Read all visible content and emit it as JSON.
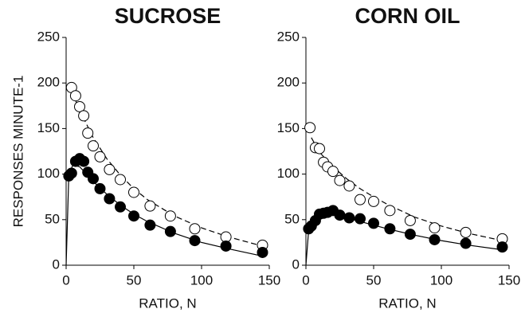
{
  "chart_data": [
    {
      "type": "scatter",
      "title": "SUCROSE",
      "xlabel": "RATIO, N",
      "ylabel": "RESPONSES MINUTE-1",
      "xlim": [
        0,
        150
      ],
      "xticks": [
        0,
        50,
        100,
        150
      ],
      "ylim": [
        0,
        250
      ],
      "yticks": [
        0,
        50,
        100,
        150,
        200,
        250
      ],
      "series": [
        {
          "marker": "open",
          "color": "#000000",
          "x": [
            4,
            7,
            10,
            13,
            16,
            20,
            25,
            32,
            40,
            50,
            62,
            77,
            95,
            118,
            145
          ],
          "values": [
            195,
            186,
            174,
            164,
            145,
            131,
            119,
            105,
            94,
            80,
            65,
            54,
            40,
            31,
            22
          ]
        },
        {
          "marker": "filled",
          "color": "#000000",
          "x": [
            2,
            4,
            7,
            10,
            13,
            16,
            20,
            25,
            32,
            40,
            50,
            62,
            77,
            95,
            118,
            145
          ],
          "values": [
            98,
            101,
            114,
            117,
            114,
            102,
            95,
            84,
            73,
            64,
            54,
            44,
            37,
            27,
            21,
            14
          ]
        },
        {
          "line": "dashed",
          "color": "#000000",
          "x": [
            2,
            5,
            10,
            20,
            30,
            40,
            50,
            60,
            80,
            100,
            120,
            145
          ],
          "values": [
            198,
            188,
            170,
            140,
            117,
            99,
            84,
            72,
            54,
            41,
            31,
            21
          ]
        },
        {
          "line": "solid",
          "color": "#000000",
          "x": [
            0,
            2,
            5,
            10,
            20,
            30,
            40,
            50,
            60,
            80,
            100,
            120,
            145
          ],
          "values": [
            0,
            100,
            110,
            108,
            92,
            78,
            66,
            56,
            48,
            35,
            25,
            18,
            10
          ]
        }
      ]
    },
    {
      "type": "scatter",
      "title": "CORN OIL",
      "xlabel": "RATIO, N",
      "xlim": [
        0,
        150
      ],
      "xticks": [
        0,
        50,
        100,
        150
      ],
      "ylim": [
        0,
        250
      ],
      "yticks": [
        0,
        50,
        100,
        150,
        200,
        250
      ],
      "series": [
        {
          "marker": "open",
          "color": "#000000",
          "x": [
            3,
            7,
            10,
            13,
            16,
            20,
            25,
            32,
            40,
            50,
            62,
            77,
            95,
            118,
            145
          ],
          "values": [
            151,
            129,
            128,
            113,
            108,
            103,
            93,
            87,
            72,
            70,
            60,
            49,
            41,
            36,
            29
          ]
        },
        {
          "marker": "filled",
          "color": "#000000",
          "x": [
            2,
            4,
            7,
            10,
            13,
            16,
            20,
            25,
            32,
            40,
            50,
            62,
            77,
            95,
            118,
            145
          ],
          "values": [
            40,
            43,
            49,
            56,
            57,
            58,
            60,
            55,
            52,
            51,
            46,
            40,
            34,
            28,
            24,
            20
          ]
        },
        {
          "line": "dashed",
          "color": "#000000",
          "x": [
            4,
            10,
            20,
            30,
            40,
            50,
            60,
            80,
            100,
            120,
            145
          ],
          "values": [
            140,
            124,
            108,
            95,
            84,
            75,
            67,
            53,
            43,
            35,
            27
          ]
        },
        {
          "line": "solid",
          "color": "#000000",
          "x": [
            0,
            2,
            5,
            10,
            20,
            30,
            40,
            50,
            60,
            80,
            100,
            120,
            145
          ],
          "values": [
            0,
            38,
            48,
            55,
            56,
            52,
            48,
            44,
            40,
            33,
            27,
            22,
            17
          ]
        }
      ]
    }
  ]
}
